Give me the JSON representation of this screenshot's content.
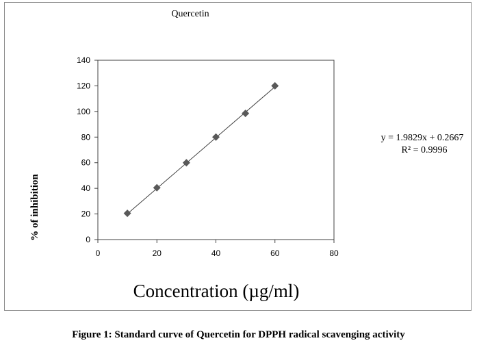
{
  "chart_data": {
    "type": "scatter",
    "title": "Quercetin",
    "xlabel": "Concentration (µg/ml)",
    "ylabel": "% of inhibition",
    "xlim": [
      0,
      80
    ],
    "ylim": [
      0,
      140
    ],
    "xticks": [
      0,
      20,
      40,
      60,
      80
    ],
    "yticks": [
      0,
      20,
      40,
      60,
      80,
      100,
      120,
      140
    ],
    "grid": false,
    "series": [
      {
        "x": [
          10,
          20,
          30,
          40,
          50,
          60
        ],
        "y": [
          20.5,
          40.5,
          60,
          80,
          98.5,
          120
        ],
        "marker": "diamond",
        "color": "#595959"
      }
    ],
    "trendline": {
      "type": "linear",
      "slope": 1.9829,
      "intercept": 0.2667,
      "x_range": [
        10,
        60
      ],
      "color": "#404040"
    },
    "equation": "y = 1.9829x + 0.2667",
    "r_squared": "R² = 0.9996"
  },
  "caption": "Figure 1: Standard curve of Quercetin for DPPH radical scavenging activity"
}
